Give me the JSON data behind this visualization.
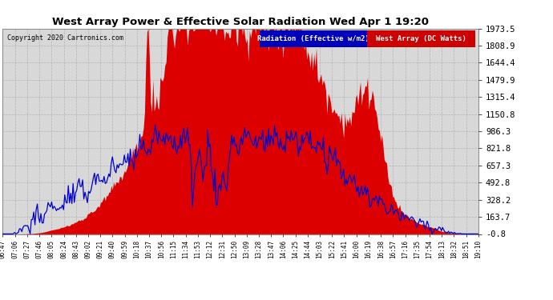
{
  "title": "West Array Power & Effective Solar Radiation Wed Apr 1 19:20",
  "copyright": "Copyright 2020 Cartronics.com",
  "legend_labels": [
    "Radiation (Effective w/m2)",
    "West Array (DC Watts)"
  ],
  "legend_colors": [
    "#0000bb",
    "#cc0000"
  ],
  "y_ticks": [
    -0.8,
    163.7,
    328.2,
    492.8,
    657.3,
    821.8,
    986.3,
    1150.8,
    1315.4,
    1479.9,
    1644.4,
    1808.9,
    1973.5
  ],
  "ylim": [
    -0.8,
    1973.5
  ],
  "x_tick_labels": [
    "06:47",
    "07:06",
    "07:27",
    "07:46",
    "08:05",
    "08:24",
    "08:43",
    "09:02",
    "09:21",
    "09:40",
    "09:59",
    "10:18",
    "10:37",
    "10:56",
    "11:15",
    "11:34",
    "11:53",
    "12:12",
    "12:31",
    "12:50",
    "13:09",
    "13:28",
    "13:47",
    "14:06",
    "14:25",
    "14:44",
    "15:03",
    "15:22",
    "15:41",
    "16:00",
    "16:19",
    "16:38",
    "16:57",
    "17:16",
    "17:35",
    "17:54",
    "18:13",
    "18:32",
    "18:51",
    "19:10"
  ],
  "bg_color": "#ffffff",
  "plot_bg_color": "#d8d8d8",
  "grid_color": "#aaaaaa",
  "fill_color": "#dd0000",
  "line_color": "#0000cc",
  "n_points": 400
}
